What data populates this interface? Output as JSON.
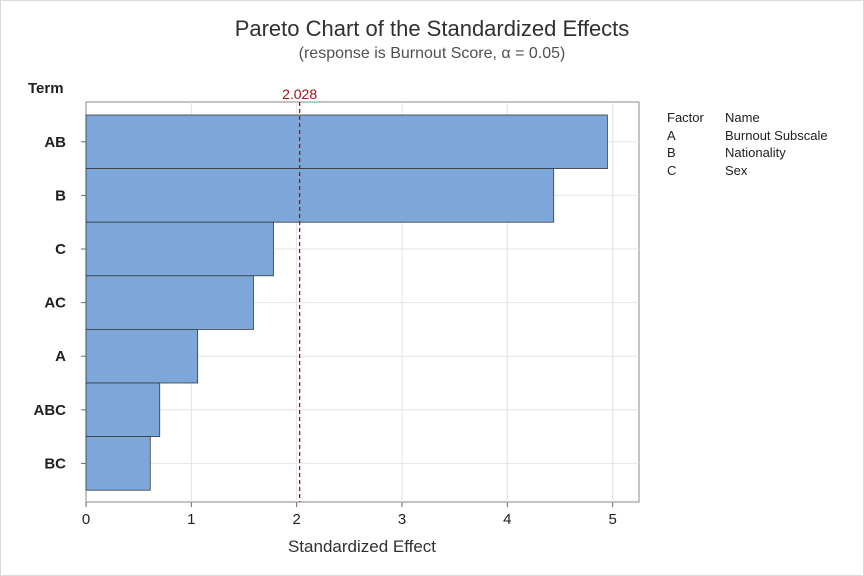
{
  "chart_data": {
    "type": "bar",
    "orientation": "horizontal",
    "title": "Pareto Chart of the Standardized Effects",
    "subtitle": "(response is Burnout Score, α = 0.05)",
    "xlabel": "Standardized Effect",
    "ylabel": "Term",
    "xlim": [
      0,
      5.25
    ],
    "xticks": [
      "0",
      "1",
      "2",
      "3",
      "4",
      "5"
    ],
    "grid": true,
    "categories": [
      "AB",
      "B",
      "C",
      "AC",
      "A",
      "ABC",
      "BC"
    ],
    "values": [
      4.95,
      4.44,
      1.78,
      1.59,
      1.06,
      0.7,
      0.61
    ],
    "reference_line": {
      "value": 2.028,
      "label": "2.028",
      "color": "#a50f15"
    },
    "bar_color": "#7da7d9",
    "legend": {
      "header_factor": "Factor",
      "header_name": "Name",
      "rows": [
        {
          "factor": "A",
          "name": "Burnout Subscale"
        },
        {
          "factor": "B",
          "name": "Nationality"
        },
        {
          "factor": "C",
          "name": "Sex"
        }
      ]
    }
  }
}
